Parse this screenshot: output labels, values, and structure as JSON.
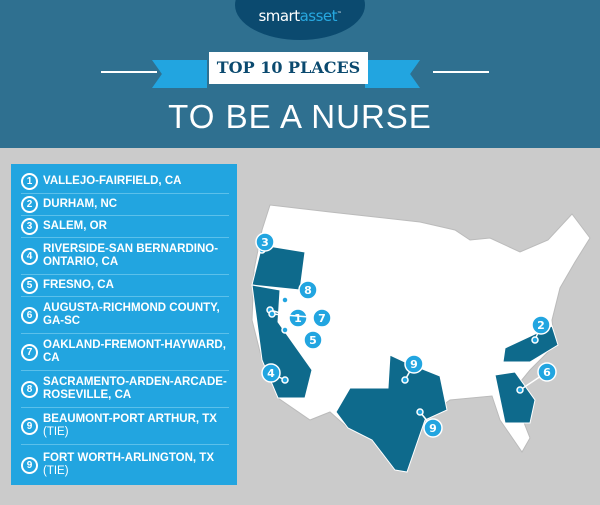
{
  "header": {
    "logo": {
      "part1": "smart",
      "part2": "asset",
      "tm": "™"
    },
    "banner": "TOP 10 PLACES",
    "title": "TO BE A NURSE"
  },
  "list": [
    {
      "rank": "1",
      "name": "VALLEJO-FAIRFIELD, CA",
      "tie": ""
    },
    {
      "rank": "2",
      "name": "DURHAM, NC",
      "tie": ""
    },
    {
      "rank": "3",
      "name": "SALEM, OR",
      "tie": ""
    },
    {
      "rank": "4",
      "name": "RIVERSIDE-SAN BERNARDINO-ONTARIO, CA",
      "tie": ""
    },
    {
      "rank": "5",
      "name": "FRESNO, CA",
      "tie": ""
    },
    {
      "rank": "6",
      "name": "AUGUSTA-RICHMOND COUNTY, GA-SC",
      "tie": ""
    },
    {
      "rank": "7",
      "name": "OAKLAND-FREMONT-HAYWARD, CA",
      "tie": ""
    },
    {
      "rank": "8",
      "name": "SACRAMENTO-ARDEN-ARCADE-ROSEVILLE, CA",
      "tie": ""
    },
    {
      "rank": "9",
      "name": "BEAUMONT-PORT ARTHUR, TX",
      "tie": "(TIE)"
    },
    {
      "rank": "9",
      "name": "FORT WORTH-ARLINGTON, TX",
      "tie": "(TIE)"
    }
  ],
  "map": {
    "highlighted_states": [
      "CA",
      "OR",
      "TX",
      "NC",
      "GA"
    ],
    "markers": [
      "3",
      "8",
      "1",
      "7",
      "5",
      "4",
      "9",
      "9",
      "2",
      "6"
    ]
  },
  "colors": {
    "header": "#2f7090",
    "accent": "#22a5e0",
    "highlight": "#0e6a8c",
    "background": "#cbcbcb"
  }
}
